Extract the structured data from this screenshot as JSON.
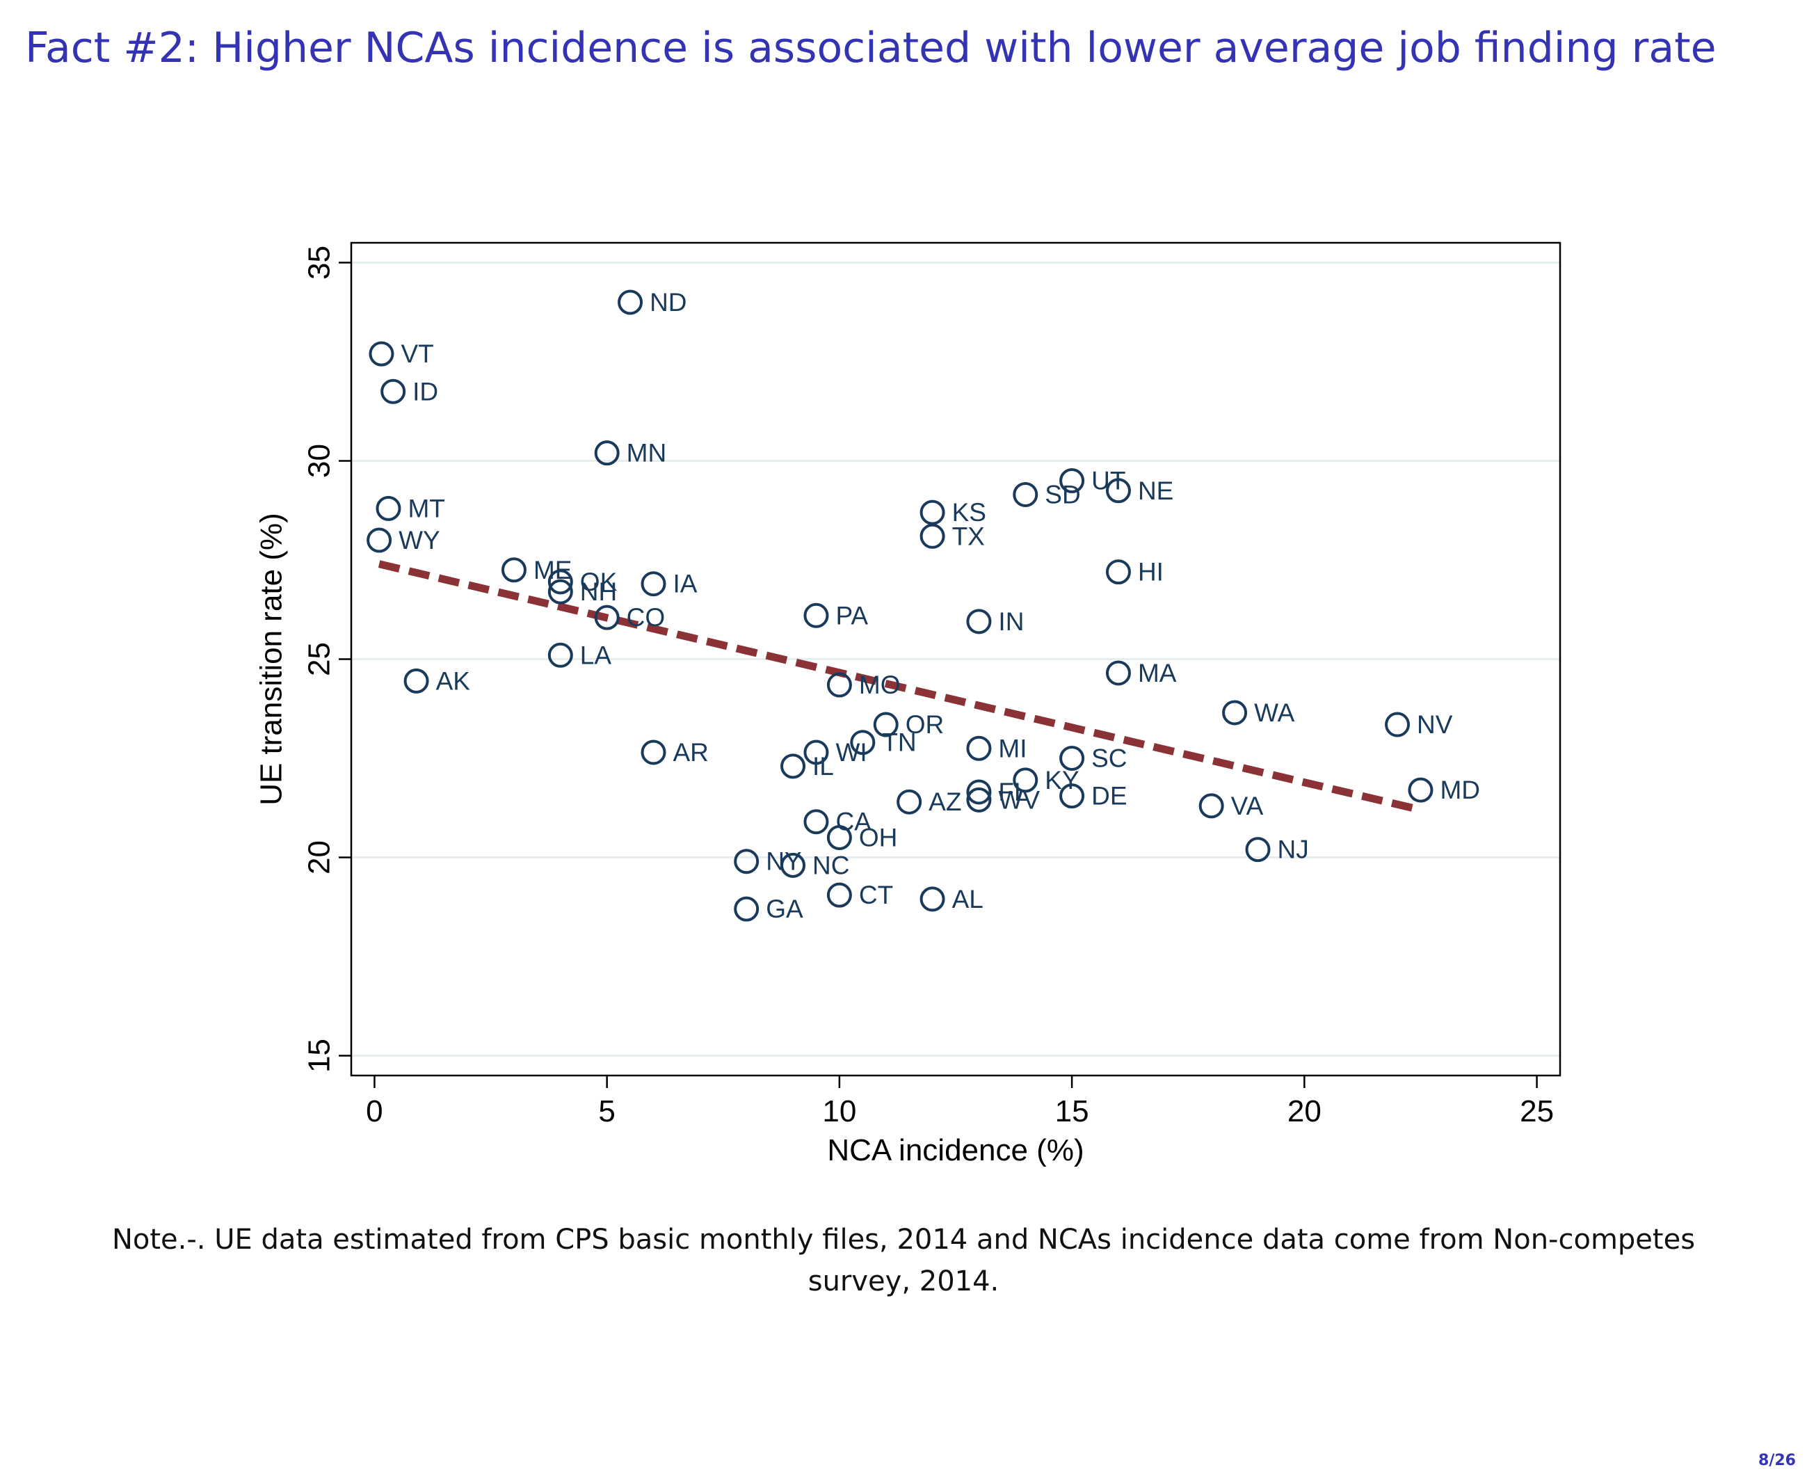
{
  "slide": {
    "title": "Fact #2: Higher NCAs incidence is associated with lower average job finding rate",
    "note_line1": "Note.-. UE data estimated from CPS basic monthly files, 2014 and NCAs incidence data come from Non-competes",
    "note_line2": "survey, 2014.",
    "page_number": "8/26"
  },
  "chart_data": {
    "type": "scatter",
    "xlabel": "NCA incidence (%)",
    "ylabel": "UE transition rate (%)",
    "xlim": [
      -0.5,
      25.5
    ],
    "ylim": [
      14.5,
      35.5
    ],
    "xticks": [
      0,
      5,
      10,
      15,
      20,
      25
    ],
    "yticks": [
      15,
      20,
      25,
      30,
      35
    ],
    "grid": "horizontal",
    "colors": {
      "points": "#1a3a5c",
      "fit_line": "#8b3236",
      "grid": "#e8eef0"
    },
    "points": [
      {
        "label": "ND",
        "x": 5.5,
        "y": 34.0
      },
      {
        "label": "VT",
        "x": 0.15,
        "y": 32.7
      },
      {
        "label": "ID",
        "x": 0.4,
        "y": 31.75
      },
      {
        "label": "MN",
        "x": 5.0,
        "y": 30.2
      },
      {
        "label": "UT",
        "x": 15.0,
        "y": 29.5
      },
      {
        "label": "NE",
        "x": 16.0,
        "y": 29.25
      },
      {
        "label": "SD",
        "x": 14.0,
        "y": 29.15
      },
      {
        "label": "MT",
        "x": 0.3,
        "y": 28.8
      },
      {
        "label": "KS",
        "x": 12.0,
        "y": 28.7
      },
      {
        "label": "TX",
        "x": 12.0,
        "y": 28.1
      },
      {
        "label": "WY",
        "x": 0.1,
        "y": 28.0
      },
      {
        "label": "ME",
        "x": 3.0,
        "y": 27.25
      },
      {
        "label": "HI",
        "x": 16.0,
        "y": 27.2
      },
      {
        "label": "OK",
        "x": 4.0,
        "y": 26.95
      },
      {
        "label": "IA",
        "x": 6.0,
        "y": 26.9
      },
      {
        "label": "NH",
        "x": 4.0,
        "y": 26.7
      },
      {
        "label": "PA",
        "x": 9.5,
        "y": 26.1
      },
      {
        "label": "CO",
        "x": 5.0,
        "y": 26.05
      },
      {
        "label": "IN",
        "x": 13.0,
        "y": 25.95
      },
      {
        "label": "LA",
        "x": 4.0,
        "y": 25.1
      },
      {
        "label": "MA",
        "x": 16.0,
        "y": 24.65
      },
      {
        "label": "AK",
        "x": 0.9,
        "y": 24.45
      },
      {
        "label": "MO",
        "x": 10.0,
        "y": 24.35
      },
      {
        "label": "WA",
        "x": 18.5,
        "y": 23.65
      },
      {
        "label": "NV",
        "x": 22.0,
        "y": 23.35
      },
      {
        "label": "OR",
        "x": 11.0,
        "y": 23.35
      },
      {
        "label": "TN",
        "x": 10.5,
        "y": 22.9
      },
      {
        "label": "MI",
        "x": 13.0,
        "y": 22.75
      },
      {
        "label": "AR",
        "x": 6.0,
        "y": 22.65
      },
      {
        "label": "WI",
        "x": 9.5,
        "y": 22.65
      },
      {
        "label": "SC",
        "x": 15.0,
        "y": 22.5
      },
      {
        "label": "IL",
        "x": 9.0,
        "y": 22.3
      },
      {
        "label": "KY",
        "x": 14.0,
        "y": 21.95
      },
      {
        "label": "MD",
        "x": 22.5,
        "y": 21.7
      },
      {
        "label": "FL",
        "x": 13.0,
        "y": 21.65
      },
      {
        "label": "DE",
        "x": 15.0,
        "y": 21.55
      },
      {
        "label": "WV",
        "x": 13.0,
        "y": 21.45
      },
      {
        "label": "AZ",
        "x": 11.5,
        "y": 21.4
      },
      {
        "label": "VA",
        "x": 18.0,
        "y": 21.3
      },
      {
        "label": "CA",
        "x": 9.5,
        "y": 20.9
      },
      {
        "label": "OH",
        "x": 10.0,
        "y": 20.5
      },
      {
        "label": "NJ",
        "x": 19.0,
        "y": 20.2
      },
      {
        "label": "NY",
        "x": 8.0,
        "y": 19.9
      },
      {
        "label": "NC",
        "x": 9.0,
        "y": 19.8
      },
      {
        "label": "CT",
        "x": 10.0,
        "y": 19.05
      },
      {
        "label": "AL",
        "x": 12.0,
        "y": 18.95
      },
      {
        "label": "GA",
        "x": 8.0,
        "y": 18.7
      }
    ],
    "fit_line": [
      {
        "x": 0.1,
        "y": 27.4
      },
      {
        "x": 22.5,
        "y": 21.2
      }
    ]
  }
}
